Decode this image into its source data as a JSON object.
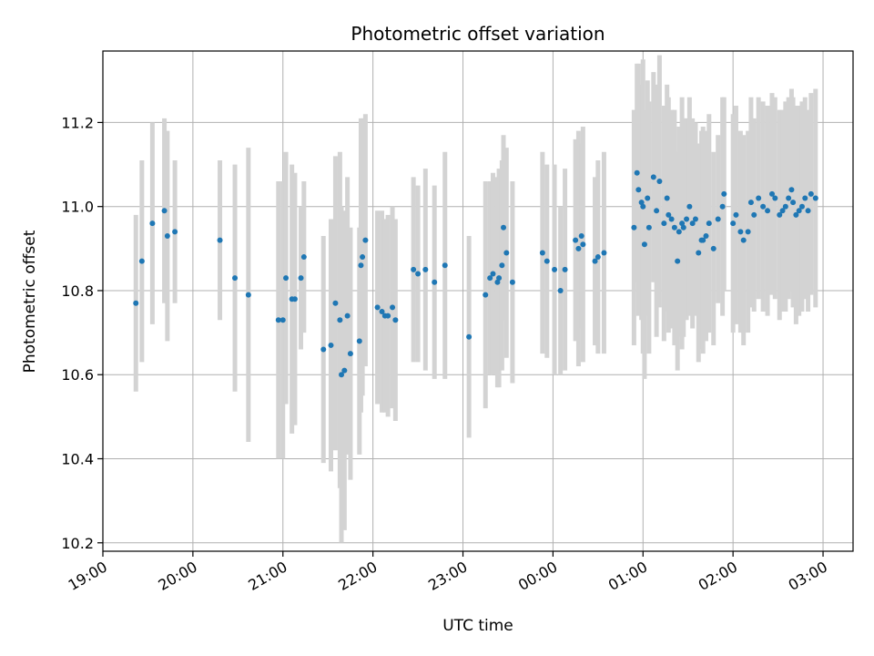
{
  "chart_data": {
    "type": "scatter",
    "title": "Photometric offset variation",
    "xlabel": "UTC time",
    "ylabel": "Photometric offset",
    "grid": true,
    "xlim": [
      "19:00",
      "03:20"
    ],
    "ylim": [
      10.18,
      11.37
    ],
    "x_ticks": [
      "19:00",
      "20:00",
      "21:00",
      "22:00",
      "23:00",
      "00:00",
      "01:00",
      "02:00",
      "03:00"
    ],
    "y_ticks": [
      10.2,
      10.4,
      10.6,
      10.8,
      11.0,
      11.2
    ],
    "point_color": "#1f77b4",
    "errorbar_color": "#d3d3d3",
    "series": [
      {
        "x": [
          "19:22",
          "19:26",
          "19:33",
          "19:41",
          "19:43",
          "19:48",
          "20:18",
          "20:28",
          "20:37",
          "20:57",
          "21:00",
          "21:02",
          "21:06",
          "21:08",
          "21:12",
          "21:14",
          "21:27",
          "21:32",
          "21:35",
          "21:38",
          "21:39",
          "21:41",
          "21:43",
          "21:45",
          "21:51",
          "21:52",
          "21:53",
          "21:55",
          "22:03",
          "22:06",
          "22:08",
          "22:10",
          "22:13",
          "22:15",
          "22:27",
          "22:30",
          "22:35",
          "22:41",
          "22:48",
          "23:04",
          "23:15",
          "23:18",
          "23:20",
          "23:23",
          "23:24",
          "23:26",
          "23:27",
          "23:29",
          "23:33",
          "23:53",
          "23:56",
          "00:01",
          "00:05",
          "00:08",
          "00:15",
          "00:17",
          "00:19",
          "00:20",
          "00:28",
          "00:30",
          "00:34",
          "00:54",
          "00:56",
          "00:57",
          "00:59",
          "01:00",
          "01:01",
          "01:03",
          "01:04",
          "01:07",
          "01:09",
          "01:11",
          "01:14",
          "01:16",
          "01:17",
          "01:19",
          "01:21",
          "01:23",
          "01:24",
          "01:26",
          "01:27",
          "01:29",
          "01:31",
          "01:33",
          "01:35",
          "01:37",
          "01:39",
          "01:40",
          "01:42",
          "01:44",
          "01:47",
          "01:50",
          "01:53",
          "01:54",
          "02:00",
          "02:02",
          "02:05",
          "02:07",
          "02:10",
          "02:12",
          "02:14",
          "02:17",
          "02:20",
          "02:23",
          "02:26",
          "02:28",
          "02:31",
          "02:33",
          "02:35",
          "02:37",
          "02:39",
          "02:40",
          "02:42",
          "02:44",
          "02:46",
          "02:48",
          "02:50",
          "02:52",
          "02:55"
        ],
        "y": [
          10.77,
          10.87,
          10.96,
          10.99,
          10.93,
          10.94,
          10.92,
          10.83,
          10.79,
          10.73,
          10.73,
          10.83,
          10.78,
          10.78,
          10.83,
          10.88,
          10.66,
          10.67,
          10.77,
          10.73,
          10.6,
          10.61,
          10.74,
          10.65,
          10.68,
          10.86,
          10.88,
          10.92,
          10.76,
          10.75,
          10.74,
          10.74,
          10.76,
          10.73,
          10.85,
          10.84,
          10.85,
          10.82,
          10.86,
          10.69,
          10.79,
          10.83,
          10.84,
          10.82,
          10.83,
          10.86,
          10.95,
          10.89,
          10.82,
          10.89,
          10.87,
          10.85,
          10.8,
          10.85,
          10.92,
          10.9,
          10.93,
          10.91,
          10.87,
          10.88,
          10.89,
          10.95,
          11.08,
          11.04,
          11.01,
          11.0,
          10.91,
          11.02,
          10.95,
          11.07,
          10.99,
          11.06,
          10.96,
          11.02,
          10.98,
          10.97,
          10.95,
          10.87,
          10.94,
          10.96,
          10.95,
          10.97,
          11.0,
          10.96,
          10.97,
          10.89,
          10.92,
          10.92,
          10.93,
          10.96,
          10.9,
          10.97,
          11.0,
          11.03,
          10.96,
          10.98,
          10.94,
          10.92,
          10.94,
          11.01,
          10.98,
          11.02,
          11.0,
          10.99,
          11.03,
          11.02,
          10.98,
          10.99,
          11.0,
          11.02,
          11.04,
          11.01,
          10.98,
          10.99,
          11.0,
          11.02,
          10.99,
          11.03,
          11.02
        ],
        "err": [
          0.21,
          0.24,
          0.24,
          0.22,
          0.25,
          0.17,
          0.19,
          0.27,
          0.35,
          0.33,
          0.33,
          0.3,
          0.32,
          0.3,
          0.17,
          0.18,
          0.27,
          0.3,
          0.35,
          0.4,
          0.4,
          0.38,
          0.33,
          0.3,
          0.27,
          0.35,
          0.33,
          0.3,
          0.23,
          0.24,
          0.23,
          0.24,
          0.24,
          0.24,
          0.22,
          0.21,
          0.24,
          0.23,
          0.27,
          0.24,
          0.27,
          0.23,
          0.24,
          0.25,
          0.26,
          0.25,
          0.22,
          0.25,
          0.24,
          0.24,
          0.23,
          0.25,
          0.2,
          0.24,
          0.24,
          0.28,
          0.22,
          0.28,
          0.2,
          0.23,
          0.24,
          0.28,
          0.26,
          0.3,
          0.28,
          0.35,
          0.32,
          0.28,
          0.3,
          0.25,
          0.3,
          0.3,
          0.28,
          0.27,
          0.28,
          0.26,
          0.28,
          0.26,
          0.25,
          0.3,
          0.26,
          0.24,
          0.26,
          0.25,
          0.23,
          0.26,
          0.26,
          0.27,
          0.25,
          0.26,
          0.23,
          0.2,
          0.26,
          0.23,
          0.26,
          0.26,
          0.24,
          0.25,
          0.24,
          0.25,
          0.23,
          0.24,
          0.25,
          0.25,
          0.24,
          0.24,
          0.25,
          0.24,
          0.25,
          0.24,
          0.24,
          0.25,
          0.26,
          0.25,
          0.25,
          0.24,
          0.24,
          0.24,
          0.26
        ]
      }
    ]
  }
}
